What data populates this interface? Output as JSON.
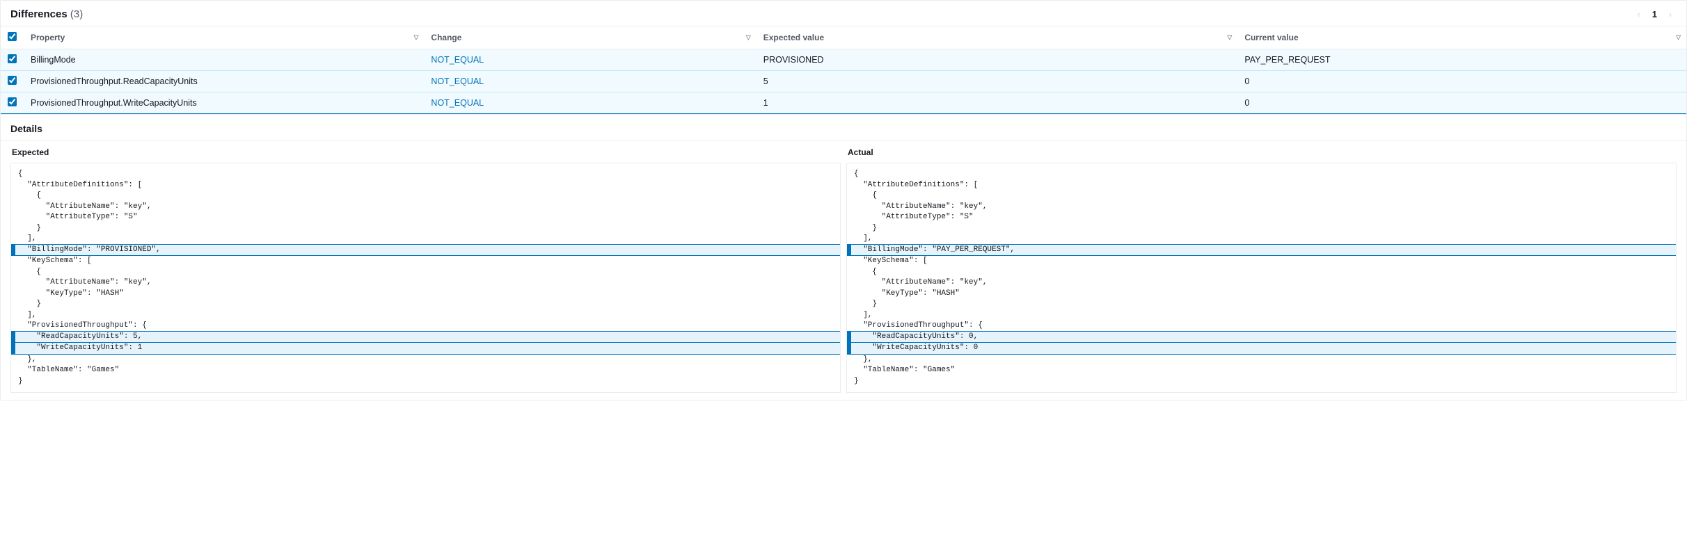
{
  "differences": {
    "title": "Differences",
    "count": "(3)",
    "pager": {
      "page": "1"
    },
    "columns": {
      "property": "Property",
      "change": "Change",
      "expected": "Expected value",
      "current": "Current value"
    },
    "rows": [
      {
        "property": "BillingMode",
        "change": "NOT_EQUAL",
        "expected": "PROVISIONED",
        "current": "PAY_PER_REQUEST",
        "checked": true
      },
      {
        "property": "ProvisionedThroughput.ReadCapacityUnits",
        "change": "NOT_EQUAL",
        "expected": "5",
        "current": "0",
        "checked": true
      },
      {
        "property": "ProvisionedThroughput.WriteCapacityUnits",
        "change": "NOT_EQUAL",
        "expected": "1",
        "current": "0",
        "checked": true
      }
    ]
  },
  "details": {
    "title": "Details",
    "expected_label": "Expected",
    "actual_label": "Actual",
    "expected_lines": [
      {
        "t": "{",
        "hl": false
      },
      {
        "t": "  \"AttributeDefinitions\": [",
        "hl": false
      },
      {
        "t": "    {",
        "hl": false
      },
      {
        "t": "      \"AttributeName\": \"key\",",
        "hl": false
      },
      {
        "t": "      \"AttributeType\": \"S\"",
        "hl": false
      },
      {
        "t": "    }",
        "hl": false
      },
      {
        "t": "  ],",
        "hl": false
      },
      {
        "t": "  \"BillingMode\": \"PROVISIONED\",",
        "hl": true
      },
      {
        "t": "  \"KeySchema\": [",
        "hl": false
      },
      {
        "t": "    {",
        "hl": false
      },
      {
        "t": "      \"AttributeName\": \"key\",",
        "hl": false
      },
      {
        "t": "      \"KeyType\": \"HASH\"",
        "hl": false
      },
      {
        "t": "    }",
        "hl": false
      },
      {
        "t": "  ],",
        "hl": false
      },
      {
        "t": "  \"ProvisionedThroughput\": {",
        "hl": false
      },
      {
        "t": "    \"ReadCapacityUnits\": 5,",
        "hl": true
      },
      {
        "t": "    \"WriteCapacityUnits\": 1",
        "hl": true
      },
      {
        "t": "  },",
        "hl": false
      },
      {
        "t": "  \"TableName\": \"Games\"",
        "hl": false
      },
      {
        "t": "}",
        "hl": false
      }
    ],
    "actual_lines": [
      {
        "t": "{",
        "hl": false
      },
      {
        "t": "  \"AttributeDefinitions\": [",
        "hl": false
      },
      {
        "t": "    {",
        "hl": false
      },
      {
        "t": "      \"AttributeName\": \"key\",",
        "hl": false
      },
      {
        "t": "      \"AttributeType\": \"S\"",
        "hl": false
      },
      {
        "t": "    }",
        "hl": false
      },
      {
        "t": "  ],",
        "hl": false
      },
      {
        "t": "  \"BillingMode\": \"PAY_PER_REQUEST\",",
        "hl": true
      },
      {
        "t": "  \"KeySchema\": [",
        "hl": false
      },
      {
        "t": "    {",
        "hl": false
      },
      {
        "t": "      \"AttributeName\": \"key\",",
        "hl": false
      },
      {
        "t": "      \"KeyType\": \"HASH\"",
        "hl": false
      },
      {
        "t": "    }",
        "hl": false
      },
      {
        "t": "  ],",
        "hl": false
      },
      {
        "t": "  \"ProvisionedThroughput\": {",
        "hl": false
      },
      {
        "t": "    \"ReadCapacityUnits\": 0,",
        "hl": true
      },
      {
        "t": "    \"WriteCapacityUnits\": 0",
        "hl": true
      },
      {
        "t": "  },",
        "hl": false
      },
      {
        "t": "  \"TableName\": \"Games\"",
        "hl": false
      },
      {
        "t": "}",
        "hl": false
      }
    ]
  },
  "colors": {
    "link": "#0073bb",
    "row_bg": "#f1faff",
    "hl_bg": "#e6f3fa",
    "hl_border": "#0073bb",
    "border": "#eaeded",
    "text": "#16191f",
    "muted": "#545b64"
  }
}
